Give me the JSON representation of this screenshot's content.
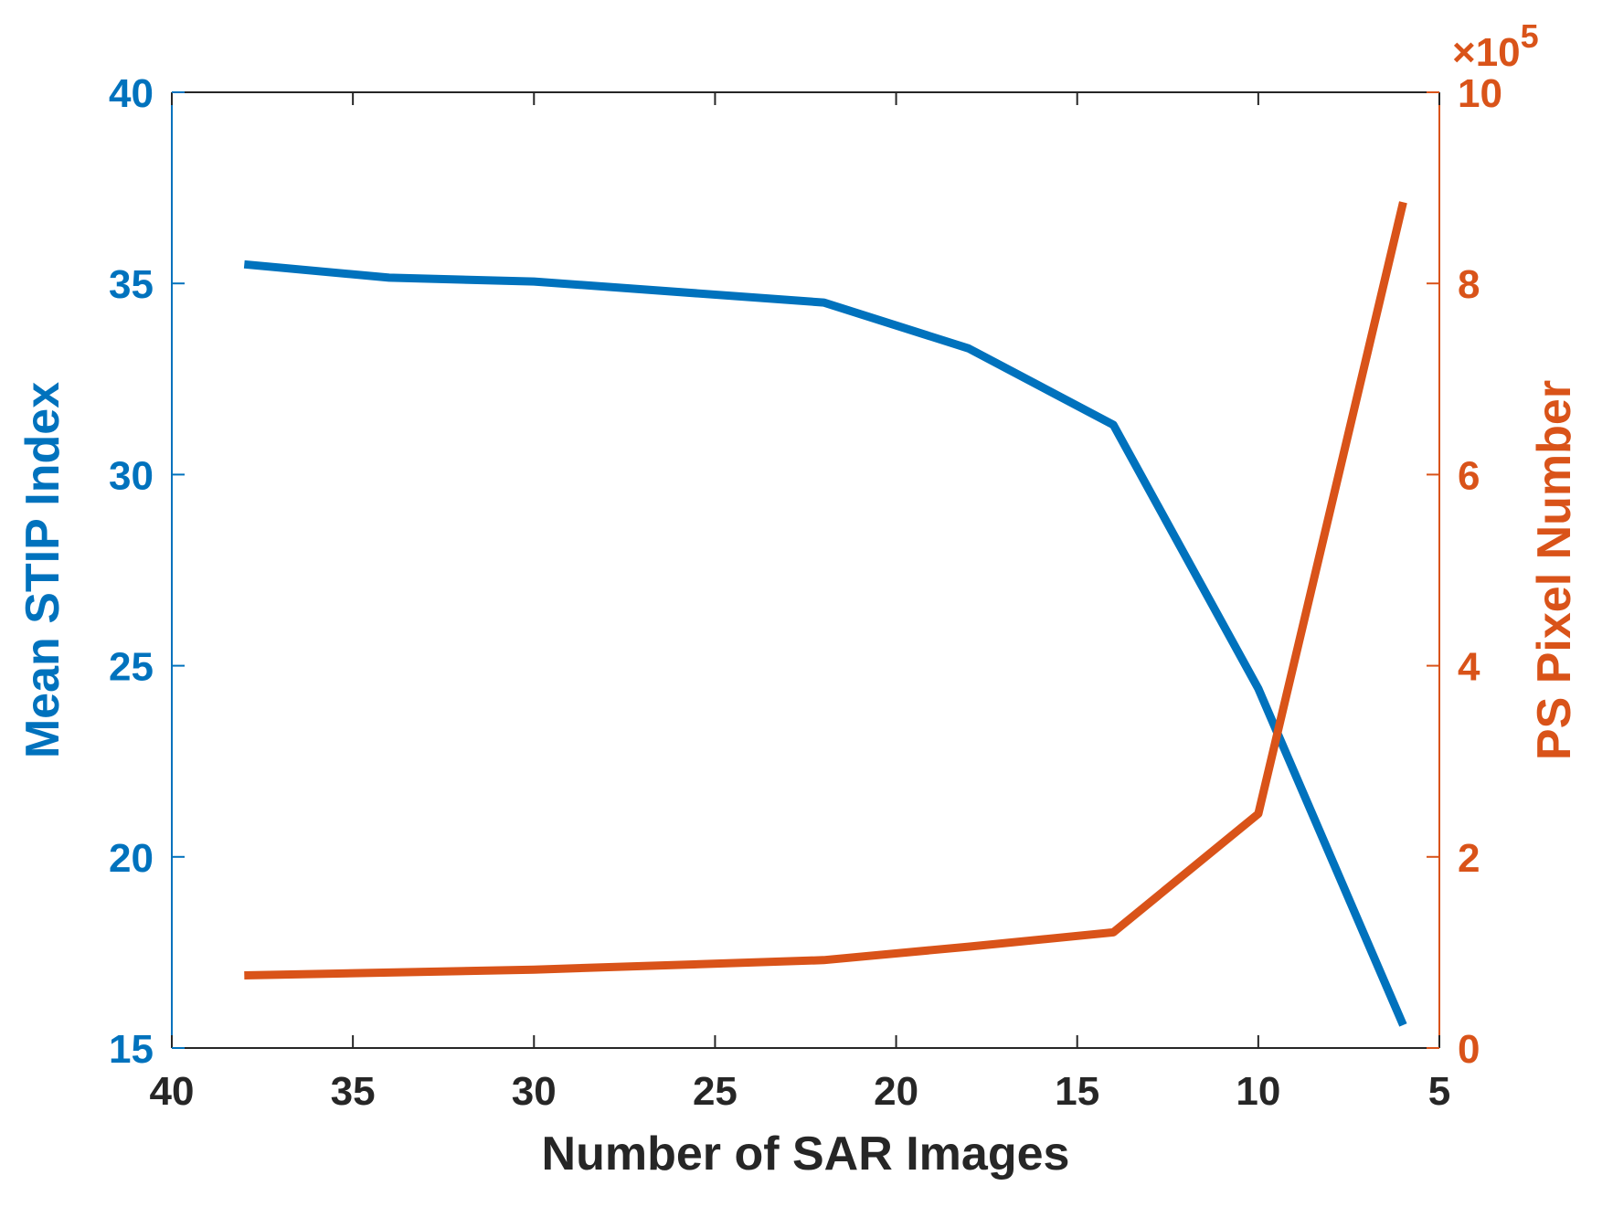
{
  "colors": {
    "left_axis": "#0072BD",
    "right_axis": "#D95319",
    "x_axis": "#262626"
  },
  "chart_data": {
    "type": "line",
    "xlabel": "Number of SAR Images",
    "ylabel_left": "Mean STIP Index",
    "ylabel_right": "PS Pixel Number",
    "right_exponent": "×10^5",
    "x_reversed": true,
    "xlim": [
      5,
      40
    ],
    "ylim_left": [
      15,
      40
    ],
    "ylim_right": [
      0,
      1000000
    ],
    "x_ticks": [
      40,
      35,
      30,
      25,
      20,
      15,
      10,
      5
    ],
    "y_ticks_left": [
      40,
      35,
      30,
      25,
      20,
      15
    ],
    "y_ticks_right": [
      10,
      8,
      6,
      4,
      2,
      0
    ],
    "grid": false,
    "series": [
      {
        "axis": "left",
        "color": "#0072BD",
        "x": [
          38,
          34,
          30,
          22,
          18,
          14,
          10,
          6
        ],
        "y": [
          35.5,
          35.15,
          35.05,
          34.5,
          33.3,
          31.3,
          24.4,
          15.6
        ]
      },
      {
        "axis": "right",
        "color": "#D95319",
        "x": [
          38,
          34,
          30,
          22,
          18,
          14,
          10,
          6
        ],
        "y": [
          76000,
          79000,
          82000,
          92000,
          106000,
          121000,
          245000,
          885000
        ]
      }
    ]
  }
}
